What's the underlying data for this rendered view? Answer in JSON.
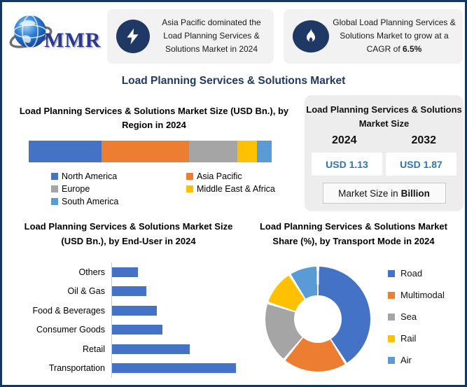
{
  "header": {
    "logo_text": "MMR",
    "callout_left": {
      "icon": "lightning-icon",
      "text": "Asia Pacific dominated the Load Planning Services & Solutions Market in 2024"
    },
    "callout_right": {
      "icon": "flame-icon",
      "text_prefix": "Global Load Planning Services & Solutions Market to grow at a CAGR of ",
      "cagr_bold": "6.5%"
    }
  },
  "page_title": "Load Planning Services & Solutions Market",
  "market_size_panel": {
    "title": "Load Planning Services & Solutions Market Size",
    "columns": [
      {
        "year": "2024",
        "value": "USD 1.13"
      },
      {
        "year": "2032",
        "value": "USD 1.87"
      }
    ],
    "footer_prefix": "Market Size in",
    "footer_bold": "Billion"
  },
  "chart_data": [
    {
      "id": "region",
      "type": "bar",
      "subtype": "stacked-horizontal-single-bar",
      "title": "Load Planning Services & Solutions Market Size (USD Bn.), by Region in 2024",
      "legend_position": "bottom",
      "series": [
        {
          "name": "North America",
          "value_pct": 30,
          "color": "#4472c4"
        },
        {
          "name": "Asia Pacific",
          "value_pct": 36,
          "color": "#ed7d31"
        },
        {
          "name": "Europe",
          "value_pct": 20,
          "color": "#a5a5a5"
        },
        {
          "name": "Middle East & Africa",
          "value_pct": 8,
          "color": "#ffc000"
        },
        {
          "name": "South America",
          "value_pct": 6,
          "color": "#5b9bd5"
        }
      ]
    },
    {
      "id": "end-user",
      "type": "bar",
      "subtype": "horizontal",
      "title": "Load Planning Services & Solutions Market Size (USD Bn.), by End-User in 2024",
      "categories": [
        "Others",
        "Oil & Gas",
        "Food & Beverages",
        "Consumer Goods",
        "Retail",
        "Transportation"
      ],
      "values_relative_to_max": [
        0.21,
        0.28,
        0.36,
        0.41,
        0.63,
        1.0
      ],
      "bar_color": "#4472c4",
      "grid": false
    },
    {
      "id": "transport-mode",
      "type": "pie",
      "subtype": "donut",
      "title": "Load Planning Services & Solutions Market Share (%), by Transport Mode in 2024",
      "legend_position": "right",
      "segments": [
        {
          "name": "Road",
          "value_pct": 41,
          "color": "#4472c4"
        },
        {
          "name": "Multimodal",
          "value_pct": 20,
          "color": "#ed7d31"
        },
        {
          "name": "Sea",
          "value_pct": 19,
          "color": "#a5a5a5"
        },
        {
          "name": "Rail",
          "value_pct": 11,
          "color": "#ffc000"
        },
        {
          "name": "Air",
          "value_pct": 9,
          "color": "#5b9bd5"
        }
      ]
    }
  ],
  "colors": {
    "frame_navy": "#17365d",
    "icon_navy": "#1f3864",
    "title_navy": "#1f3864",
    "panel_gray": "#ededed",
    "callout_gray": "#f2f2f2",
    "value_blue": "#2e75b6"
  }
}
